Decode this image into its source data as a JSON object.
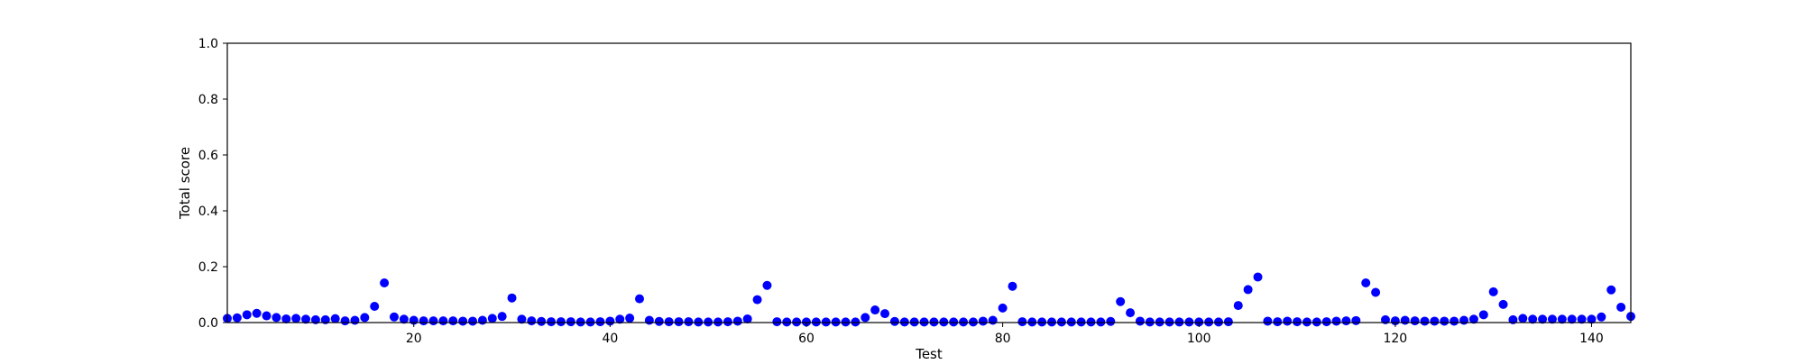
{
  "chart_data": {
    "type": "scatter",
    "title": "",
    "xlabel": "Test",
    "ylabel": "Total score",
    "xlim": [
      1,
      144
    ],
    "ylim": [
      0.0,
      1.0
    ],
    "xticks": [
      20,
      40,
      60,
      80,
      100,
      120,
      140
    ],
    "xtick_labels": [
      "20",
      "40",
      "60",
      "80",
      "100",
      "120",
      "140"
    ],
    "yticks": [
      0.0,
      0.2,
      0.4,
      0.6,
      0.8,
      1.0
    ],
    "ytick_labels": [
      "0.0",
      "0.2",
      "0.4",
      "0.6",
      "0.8",
      "1.0"
    ],
    "grid": false,
    "marker_color": "#0000ff",
    "series": [
      {
        "x": [
          1,
          2,
          3,
          4,
          5,
          6,
          7,
          8,
          9,
          10,
          11,
          12,
          13,
          14,
          15,
          16,
          17,
          18,
          19,
          20,
          21,
          22,
          23,
          24,
          25,
          26,
          27,
          28,
          29,
          30,
          31,
          32,
          33,
          34,
          35,
          36,
          37,
          38,
          39,
          40,
          41,
          42,
          43,
          44,
          45,
          46,
          47,
          48,
          49,
          50,
          51,
          52,
          53,
          54,
          55,
          56,
          57,
          58,
          59,
          60,
          61,
          62,
          63,
          64,
          65,
          66,
          67,
          68,
          69,
          70,
          71,
          72,
          73,
          74,
          75,
          76,
          77,
          78,
          79,
          80,
          81,
          82,
          83,
          84,
          85,
          86,
          87,
          88,
          89,
          90,
          91,
          92,
          93,
          94,
          95,
          96,
          97,
          98,
          99,
          100,
          101,
          102,
          103,
          104,
          105,
          106,
          107,
          108,
          109,
          110,
          111,
          112,
          113,
          114,
          115,
          116,
          117,
          118,
          119,
          120,
          121,
          122,
          123,
          124,
          125,
          126,
          127,
          128,
          129,
          130,
          131,
          132,
          133,
          134,
          135,
          136,
          137,
          138,
          139,
          140,
          141,
          142,
          143,
          144
        ],
        "y": [
          0.015,
          0.017,
          0.028,
          0.033,
          0.024,
          0.018,
          0.013,
          0.015,
          0.012,
          0.01,
          0.01,
          0.014,
          0.006,
          0.008,
          0.018,
          0.058,
          0.142,
          0.02,
          0.012,
          0.008,
          0.006,
          0.006,
          0.006,
          0.006,
          0.005,
          0.005,
          0.008,
          0.015,
          0.022,
          0.088,
          0.012,
          0.006,
          0.004,
          0.003,
          0.003,
          0.003,
          0.002,
          0.002,
          0.003,
          0.005,
          0.012,
          0.016,
          0.085,
          0.008,
          0.004,
          0.003,
          0.003,
          0.003,
          0.002,
          0.002,
          0.002,
          0.003,
          0.005,
          0.013,
          0.082,
          0.133,
          0.003,
          0.002,
          0.002,
          0.002,
          0.002,
          0.002,
          0.002,
          0.002,
          0.002,
          0.018,
          0.045,
          0.032,
          0.004,
          0.002,
          0.002,
          0.002,
          0.002,
          0.002,
          0.002,
          0.002,
          0.002,
          0.005,
          0.008,
          0.052,
          0.13,
          0.003,
          0.002,
          0.002,
          0.002,
          0.002,
          0.002,
          0.002,
          0.002,
          0.002,
          0.004,
          0.075,
          0.035,
          0.005,
          0.002,
          0.002,
          0.002,
          0.002,
          0.002,
          0.002,
          0.002,
          0.002,
          0.003,
          0.061,
          0.118,
          0.163,
          0.005,
          0.003,
          0.005,
          0.003,
          0.002,
          0.002,
          0.003,
          0.005,
          0.006,
          0.007,
          0.142,
          0.108,
          0.01,
          0.006,
          0.008,
          0.006,
          0.005,
          0.005,
          0.005,
          0.005,
          0.008,
          0.012,
          0.028,
          0.11,
          0.065,
          0.01,
          0.015,
          0.012,
          0.012,
          0.012,
          0.012,
          0.012,
          0.012,
          0.012,
          0.02,
          0.117,
          0.055,
          0.022
        ]
      }
    ]
  }
}
